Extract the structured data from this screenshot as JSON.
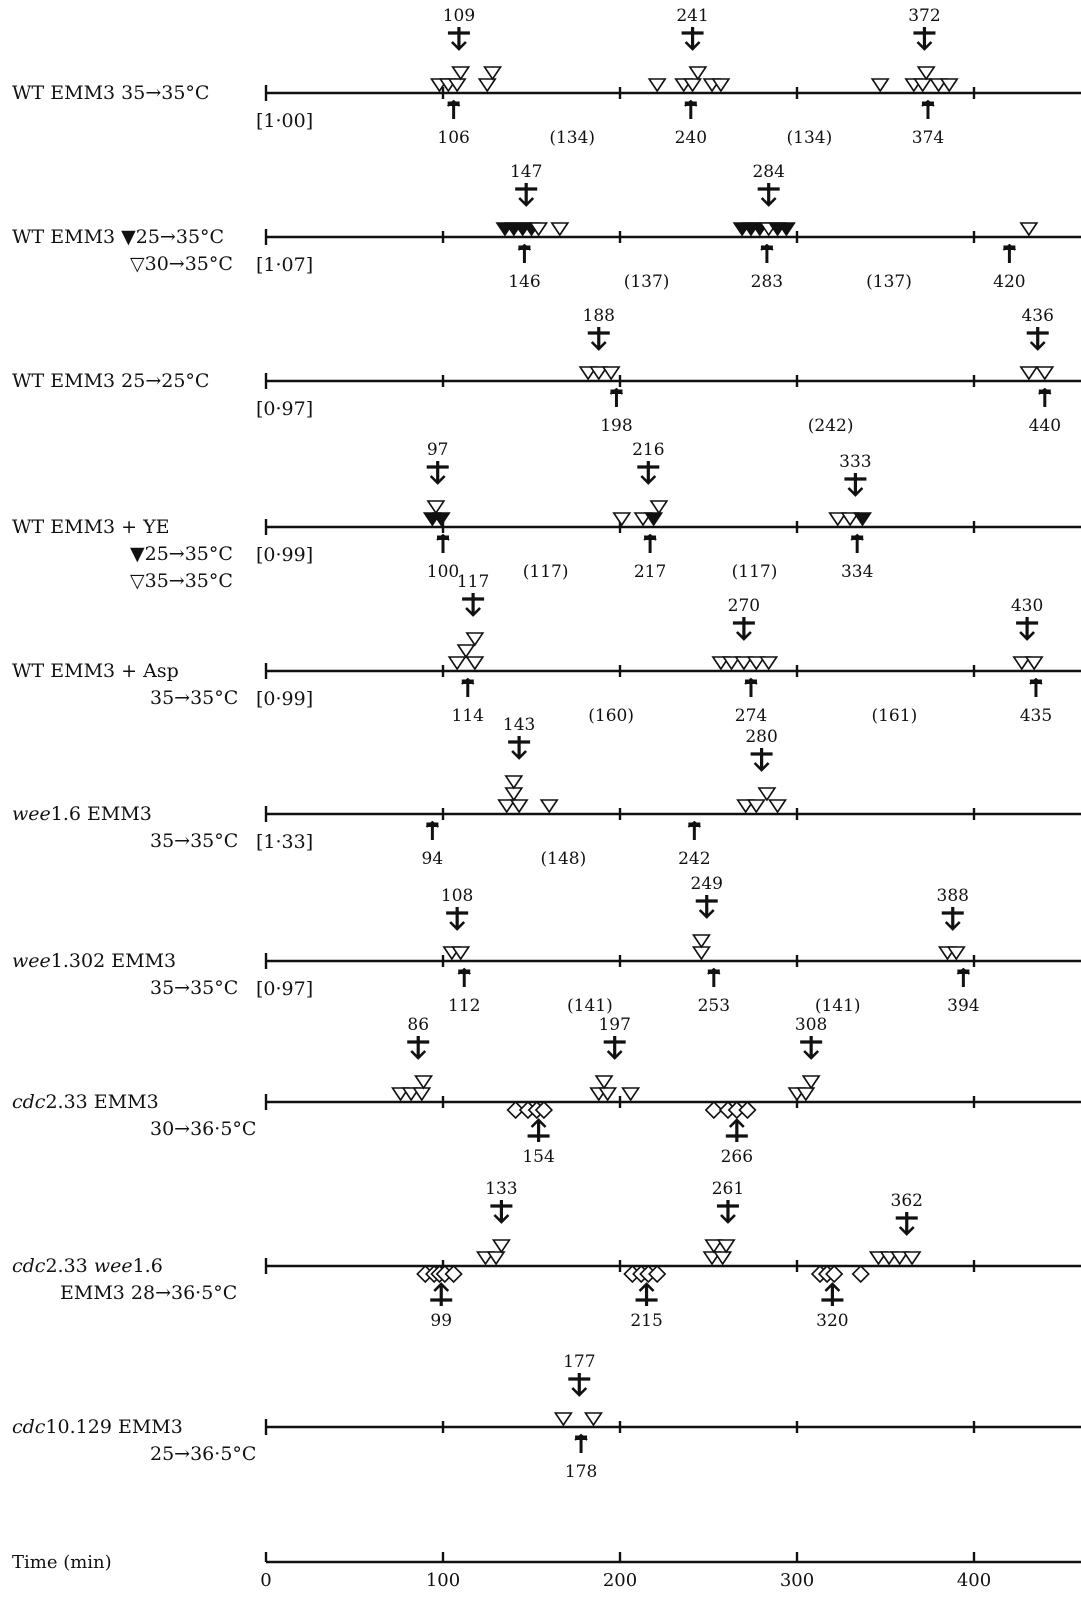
{
  "axis": {
    "label": "Time (min)",
    "ticks": [
      0,
      100,
      200,
      300,
      400
    ],
    "tick_labels": [
      "0",
      "100",
      "200",
      "300",
      "400"
    ],
    "range": [
      0,
      460
    ]
  },
  "rows": [
    {
      "id": "wt-35-35",
      "labels": [
        "WT EMM3    35→35°C"
      ],
      "ratio": "[1·00]",
      "tops": [
        {
          "t": 109,
          "label": "109"
        },
        {
          "t": 241,
          "label": "241"
        },
        {
          "t": 372,
          "label": "372"
        }
      ],
      "bottoms": [
        {
          "t": 106,
          "label": "106",
          "kind": "arrow"
        },
        {
          "t": 240,
          "label": "240",
          "kind": "arrow"
        },
        {
          "t": 374,
          "label": "374",
          "kind": "arrow"
        }
      ],
      "intervals": [
        {
          "t": 173,
          "label": "(134)"
        },
        {
          "t": 307,
          "label": "(134)"
        }
      ],
      "triangles": [
        {
          "t": 98,
          "fill": false,
          "stack": 0
        },
        {
          "t": 103,
          "fill": false,
          "stack": 0
        },
        {
          "t": 108,
          "fill": false,
          "stack": 0
        },
        {
          "t": 110,
          "fill": false,
          "stack": 1
        },
        {
          "t": 125,
          "fill": false,
          "stack": 0
        },
        {
          "t": 128,
          "fill": false,
          "stack": 1
        },
        {
          "t": 221,
          "fill": false,
          "stack": 0
        },
        {
          "t": 236,
          "fill": false,
          "stack": 0
        },
        {
          "t": 241,
          "fill": false,
          "stack": 0
        },
        {
          "t": 244,
          "fill": false,
          "stack": 1
        },
        {
          "t": 252,
          "fill": false,
          "stack": 0
        },
        {
          "t": 257,
          "fill": false,
          "stack": 0
        },
        {
          "t": 347,
          "fill": false,
          "stack": 0
        },
        {
          "t": 366,
          "fill": false,
          "stack": 0
        },
        {
          "t": 371,
          "fill": false,
          "stack": 0
        },
        {
          "t": 373,
          "fill": false,
          "stack": 1
        },
        {
          "t": 380,
          "fill": false,
          "stack": 0
        },
        {
          "t": 386,
          "fill": false,
          "stack": 0
        }
      ],
      "diamonds": []
    },
    {
      "id": "wt-25-30-35",
      "labels": [
        "WT EMM3  ▼25→35°C",
        "▽30→35°C"
      ],
      "ratio": "[1·07]",
      "tops": [
        {
          "t": 147,
          "label": "147"
        },
        {
          "t": 284,
          "label": "284"
        }
      ],
      "bottoms": [
        {
          "t": 146,
          "label": "146",
          "kind": "arrow"
        },
        {
          "t": 283,
          "label": "283",
          "kind": "arrow"
        },
        {
          "t": 420,
          "label": "420",
          "kind": "arrow"
        }
      ],
      "intervals": [
        {
          "t": 215,
          "label": "(137)"
        },
        {
          "t": 352,
          "label": "(137)"
        }
      ],
      "triangles": [
        {
          "t": 135,
          "fill": true,
          "stack": 0
        },
        {
          "t": 140,
          "fill": true,
          "stack": 0
        },
        {
          "t": 145,
          "fill": true,
          "stack": 0
        },
        {
          "t": 150,
          "fill": true,
          "stack": 0
        },
        {
          "t": 154,
          "fill": false,
          "stack": 0
        },
        {
          "t": 166,
          "fill": false,
          "stack": 0
        },
        {
          "t": 269,
          "fill": true,
          "stack": 0
        },
        {
          "t": 274,
          "fill": true,
          "stack": 0
        },
        {
          "t": 279,
          "fill": true,
          "stack": 0
        },
        {
          "t": 284,
          "fill": false,
          "stack": 0
        },
        {
          "t": 289,
          "fill": true,
          "stack": 0
        },
        {
          "t": 294,
          "fill": true,
          "stack": 0
        },
        {
          "t": 431,
          "fill": false,
          "stack": 0
        }
      ],
      "diamonds": []
    },
    {
      "id": "wt-25-25",
      "labels": [
        "WT EMM3    25→25°C"
      ],
      "ratio": "[0·97]",
      "tops": [
        {
          "t": 188,
          "label": "188"
        },
        {
          "t": 436,
          "label": "436"
        }
      ],
      "bottoms": [
        {
          "t": 198,
          "label": "198",
          "kind": "arrow"
        },
        {
          "t": 440,
          "label": "440",
          "kind": "arrow"
        }
      ],
      "intervals": [
        {
          "t": 319,
          "label": "(242)"
        }
      ],
      "triangles": [
        {
          "t": 182,
          "fill": false,
          "stack": 0
        },
        {
          "t": 188,
          "fill": false,
          "stack": 0
        },
        {
          "t": 195,
          "fill": false,
          "stack": 0
        },
        {
          "t": 431,
          "fill": false,
          "stack": 0
        },
        {
          "t": 440,
          "fill": false,
          "stack": 0
        }
      ],
      "diamonds": []
    },
    {
      "id": "wt-ye",
      "labels": [
        "WT EMM3 + YE",
        "▼25→35°C",
        "▽35→35°C"
      ],
      "ratio": "[0·99]",
      "tops": [
        {
          "t": 97,
          "label": "97"
        },
        {
          "t": 216,
          "label": "216"
        },
        {
          "t": 333,
          "label": "333"
        }
      ],
      "bottoms": [
        {
          "t": 100,
          "label": "100",
          "kind": "arrow"
        },
        {
          "t": 217,
          "label": "217",
          "kind": "arrow"
        },
        {
          "t": 334,
          "label": "334",
          "kind": "arrow"
        }
      ],
      "intervals": [
        {
          "t": 158,
          "label": "(117)"
        },
        {
          "t": 276,
          "label": "(117)"
        }
      ],
      "triangles": [
        {
          "t": 94,
          "fill": true,
          "stack": 0
        },
        {
          "t": 99,
          "fill": true,
          "stack": 0
        },
        {
          "t": 96,
          "fill": false,
          "stack": 1
        },
        {
          "t": 201,
          "fill": false,
          "stack": 0
        },
        {
          "t": 213,
          "fill": false,
          "stack": 0
        },
        {
          "t": 219,
          "fill": true,
          "stack": 0
        },
        {
          "t": 222,
          "fill": false,
          "stack": 1
        },
        {
          "t": 323,
          "fill": false,
          "stack": 0
        },
        {
          "t": 330,
          "fill": false,
          "stack": 0
        },
        {
          "t": 337,
          "fill": true,
          "stack": 0
        }
      ],
      "diamonds": []
    },
    {
      "id": "wt-asp",
      "labels": [
        "WT EMM3 + Asp",
        "35→35°C"
      ],
      "ratio": "[0·99]",
      "tops": [
        {
          "t": 117,
          "label": "117"
        },
        {
          "t": 270,
          "label": "270"
        },
        {
          "t": 430,
          "label": "430"
        }
      ],
      "bottoms": [
        {
          "t": 114,
          "label": "114",
          "kind": "arrow"
        },
        {
          "t": 274,
          "label": "274",
          "kind": "arrow"
        },
        {
          "t": 435,
          "label": "435",
          "kind": "arrow"
        }
      ],
      "intervals": [
        {
          "t": 195,
          "label": "(160)"
        },
        {
          "t": 355,
          "label": "(161)"
        }
      ],
      "triangles": [
        {
          "t": 108,
          "fill": false,
          "stack": 0
        },
        {
          "t": 118,
          "fill": false,
          "stack": 0
        },
        {
          "t": 113,
          "fill": false,
          "stack": 1
        },
        {
          "t": 118,
          "fill": false,
          "stack": 2
        },
        {
          "t": 257,
          "fill": false,
          "stack": 0
        },
        {
          "t": 263,
          "fill": false,
          "stack": 0
        },
        {
          "t": 270,
          "fill": false,
          "stack": 0
        },
        {
          "t": 277,
          "fill": false,
          "stack": 0
        },
        {
          "t": 284,
          "fill": false,
          "stack": 0
        },
        {
          "t": 427,
          "fill": false,
          "stack": 0
        },
        {
          "t": 434,
          "fill": false,
          "stack": 0
        }
      ],
      "diamonds": []
    },
    {
      "id": "wee16",
      "labels": [
        "wee1.6 EMM3",
        "35→35°C"
      ],
      "italic_prefix": [
        "wee",
        ""
      ],
      "ratio": "[1·33]",
      "tops": [
        {
          "t": 143,
          "label": "143"
        },
        {
          "t": 280,
          "label": "280"
        }
      ],
      "bottoms": [
        {
          "t": 94,
          "label": "94",
          "kind": "arrow"
        },
        {
          "t": 242,
          "label": "242",
          "kind": "arrow"
        }
      ],
      "intervals": [
        {
          "t": 168,
          "label": "(148)"
        }
      ],
      "triangles": [
        {
          "t": 136,
          "fill": false,
          "stack": 0
        },
        {
          "t": 143,
          "fill": false,
          "stack": 0
        },
        {
          "t": 140,
          "fill": false,
          "stack": 1
        },
        {
          "t": 140,
          "fill": false,
          "stack": 2
        },
        {
          "t": 160,
          "fill": false,
          "stack": 0
        },
        {
          "t": 271,
          "fill": false,
          "stack": 0
        },
        {
          "t": 277,
          "fill": false,
          "stack": 0
        },
        {
          "t": 283,
          "fill": false,
          "stack": 1
        },
        {
          "t": 289,
          "fill": false,
          "stack": 0
        }
      ],
      "diamonds": []
    },
    {
      "id": "wee1302",
      "labels": [
        "wee1.302 EMM3",
        "35→35°C"
      ],
      "italic_prefix": [
        "wee",
        ""
      ],
      "ratio": "[0·97]",
      "tops": [
        {
          "t": 108,
          "label": "108"
        },
        {
          "t": 249,
          "label": "249"
        },
        {
          "t": 388,
          "label": "388"
        }
      ],
      "bottoms": [
        {
          "t": 112,
          "label": "112",
          "kind": "arrow"
        },
        {
          "t": 253,
          "label": "253",
          "kind": "arrow"
        },
        {
          "t": 394,
          "label": "394",
          "kind": "arrow"
        }
      ],
      "intervals": [
        {
          "t": 183,
          "label": "(141)"
        },
        {
          "t": 323,
          "label": "(141)"
        }
      ],
      "triangles": [
        {
          "t": 105,
          "fill": false,
          "stack": 0
        },
        {
          "t": 110,
          "fill": false,
          "stack": 0
        },
        {
          "t": 246,
          "fill": false,
          "stack": 0
        },
        {
          "t": 246,
          "fill": false,
          "stack": 1
        },
        {
          "t": 385,
          "fill": false,
          "stack": 0
        },
        {
          "t": 390,
          "fill": false,
          "stack": 0
        }
      ],
      "diamonds": []
    },
    {
      "id": "cdc233",
      "labels": [
        "cdc2.33 EMM3",
        "30→36·5°C"
      ],
      "italic_prefix": [
        "cdc",
        ""
      ],
      "ratio": "",
      "tops": [
        {
          "t": 86,
          "label": "86"
        },
        {
          "t": 197,
          "label": "197"
        },
        {
          "t": 308,
          "label": "308"
        }
      ],
      "bottoms": [
        {
          "t": 154,
          "label": "154",
          "kind": "bar"
        },
        {
          "t": 266,
          "label": "266",
          "kind": "bar"
        }
      ],
      "intervals": [],
      "triangles": [
        {
          "t": 76,
          "fill": false,
          "stack": 0
        },
        {
          "t": 82,
          "fill": false,
          "stack": 0
        },
        {
          "t": 88,
          "fill": false,
          "stack": 0
        },
        {
          "t": 89,
          "fill": false,
          "stack": 1
        },
        {
          "t": 188,
          "fill": false,
          "stack": 0
        },
        {
          "t": 193,
          "fill": false,
          "stack": 0
        },
        {
          "t": 191,
          "fill": false,
          "stack": 1
        },
        {
          "t": 206,
          "fill": false,
          "stack": 0
        },
        {
          "t": 300,
          "fill": false,
          "stack": 0
        },
        {
          "t": 305,
          "fill": false,
          "stack": 0
        },
        {
          "t": 308,
          "fill": false,
          "stack": 1
        }
      ],
      "diamonds": [
        {
          "t": 141
        },
        {
          "t": 148
        },
        {
          "t": 153
        },
        {
          "t": 157
        },
        {
          "t": 253
        },
        {
          "t": 261
        },
        {
          "t": 266
        },
        {
          "t": 272
        }
      ]
    },
    {
      "id": "cdc233-wee16",
      "labels": [
        "cdc2.33 wee1.6",
        "EMM3 28→36·5°C"
      ],
      "italic_prefix": [
        "cdc",
        ""
      ],
      "ratio": "",
      "tops": [
        {
          "t": 133,
          "label": "133"
        },
        {
          "t": 261,
          "label": "261"
        },
        {
          "t": 362,
          "label": "362"
        }
      ],
      "bottoms": [
        {
          "t": 99,
          "label": "99",
          "kind": "bar"
        },
        {
          "t": 215,
          "label": "215",
          "kind": "bar"
        },
        {
          "t": 320,
          "label": "320",
          "kind": "bar"
        }
      ],
      "intervals": [],
      "triangles": [
        {
          "t": 124,
          "fill": false,
          "stack": 0
        },
        {
          "t": 130,
          "fill": false,
          "stack": 0
        },
        {
          "t": 133,
          "fill": false,
          "stack": 1
        },
        {
          "t": 252,
          "fill": false,
          "stack": 0
        },
        {
          "t": 258,
          "fill": false,
          "stack": 0
        },
        {
          "t": 253,
          "fill": false,
          "stack": 1
        },
        {
          "t": 260,
          "fill": false,
          "stack": 1
        },
        {
          "t": 346,
          "fill": false,
          "stack": 0
        },
        {
          "t": 352,
          "fill": false,
          "stack": 0
        },
        {
          "t": 358,
          "fill": false,
          "stack": 0
        },
        {
          "t": 365,
          "fill": false,
          "stack": 0
        }
      ],
      "diamonds": [
        {
          "t": 90
        },
        {
          "t": 95
        },
        {
          "t": 98
        },
        {
          "t": 101
        },
        {
          "t": 106
        },
        {
          "t": 207
        },
        {
          "t": 212
        },
        {
          "t": 216
        },
        {
          "t": 221
        },
        {
          "t": 313
        },
        {
          "t": 317
        },
        {
          "t": 321
        },
        {
          "t": 336
        }
      ]
    },
    {
      "id": "cdc10129",
      "labels": [
        "cdc10.129 EMM3",
        "25→36·5°C"
      ],
      "italic_prefix": [
        "cdc",
        ""
      ],
      "ratio": "",
      "tops": [
        {
          "t": 177,
          "label": "177"
        }
      ],
      "bottoms": [
        {
          "t": 178,
          "label": "178",
          "kind": "arrow"
        }
      ],
      "intervals": [],
      "triangles": [
        {
          "t": 168,
          "fill": false,
          "stack": 0
        },
        {
          "t": 185,
          "fill": false,
          "stack": 0
        }
      ],
      "diamonds": []
    }
  ]
}
